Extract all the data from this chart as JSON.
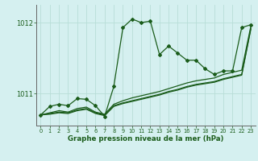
{
  "title": "Graphe pression niveau de la mer (hPa)",
  "background_color": "#d5f0f0",
  "grid_color": "#b8ddd8",
  "line_color": "#1a5c1a",
  "xlim": [
    -0.5,
    23.5
  ],
  "ylim": [
    1010.55,
    1012.25
  ],
  "yticks": [
    1011,
    1012
  ],
  "xticks": [
    0,
    1,
    2,
    3,
    4,
    5,
    6,
    7,
    8,
    9,
    10,
    11,
    12,
    13,
    14,
    15,
    16,
    17,
    18,
    19,
    20,
    21,
    22,
    23
  ],
  "series": {
    "main": [
      1010.7,
      1010.82,
      1010.85,
      1010.83,
      1010.93,
      1010.92,
      1010.83,
      1010.68,
      1011.1,
      1011.93,
      1012.05,
      1012.0,
      1012.02,
      1011.55,
      1011.67,
      1011.57,
      1011.47,
      1011.47,
      1011.35,
      1011.27,
      1011.32,
      1011.32,
      1011.93,
      1011.97
    ],
    "line2": [
      1010.7,
      1010.73,
      1010.76,
      1010.74,
      1010.79,
      1010.81,
      1010.74,
      1010.71,
      1010.85,
      1010.9,
      1010.94,
      1010.97,
      1011.0,
      1011.03,
      1011.07,
      1011.11,
      1011.15,
      1011.18,
      1011.2,
      1011.22,
      1011.27,
      1011.3,
      1011.33,
      1011.95
    ],
    "line3": [
      1010.7,
      1010.72,
      1010.74,
      1010.73,
      1010.77,
      1010.79,
      1010.73,
      1010.7,
      1010.83,
      1010.87,
      1010.9,
      1010.93,
      1010.96,
      1010.99,
      1011.03,
      1011.06,
      1011.1,
      1011.13,
      1011.15,
      1011.17,
      1011.21,
      1011.24,
      1011.27,
      1011.92
    ],
    "line4": [
      1010.7,
      1010.71,
      1010.73,
      1010.72,
      1010.76,
      1010.78,
      1010.72,
      1010.69,
      1010.82,
      1010.86,
      1010.89,
      1010.92,
      1010.95,
      1010.98,
      1011.02,
      1011.05,
      1011.09,
      1011.12,
      1011.14,
      1011.16,
      1011.2,
      1011.23,
      1011.26,
      1011.91
    ]
  }
}
